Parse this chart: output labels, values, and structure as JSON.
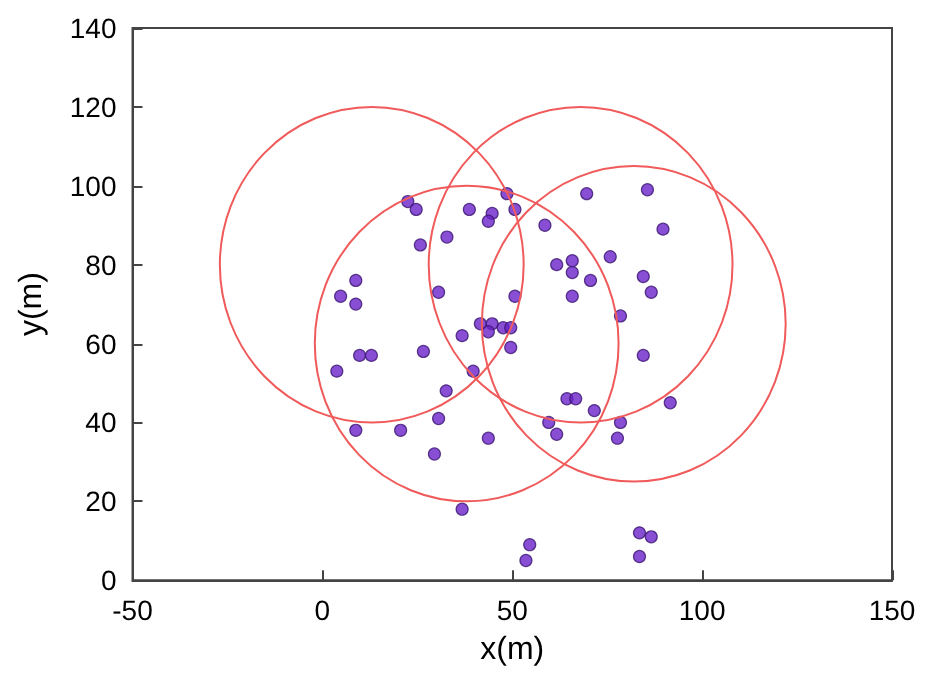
{
  "chart_data": {
    "type": "scatter",
    "xlabel": "x(m)",
    "ylabel": "y(m)",
    "xlim": [
      -50,
      150
    ],
    "ylim": [
      0,
      140
    ],
    "xticks": [
      -50,
      0,
      50,
      100,
      150
    ],
    "yticks": [
      0,
      20,
      40,
      60,
      80,
      100,
      120,
      140
    ],
    "grid": false,
    "marker": "circle",
    "series": [
      {
        "color": "#6a22c8",
        "x": [
          22.5,
          8.8,
          4.8,
          8.8,
          9.8,
          12.9,
          3.8,
          8.8,
          20.6,
          24.7,
          48.6,
          50.7,
          38.7,
          44.7,
          43.7,
          69.6,
          85.6,
          89.7,
          58.6,
          25.8,
          32.8,
          61.7,
          65.8,
          65.8,
          75.8,
          70.6,
          84.5,
          86.6,
          65.8,
          30.6,
          50.7,
          78.5,
          41.6,
          44.7,
          43.7,
          47.6,
          49.6,
          36.8,
          49.6,
          26.6,
          84.5,
          39.7,
          32.6,
          64.4,
          66.7,
          71.6,
          91.6,
          59.6,
          61.7,
          78.5,
          77.7,
          30.6,
          29.5,
          43.7,
          36.8,
          54.6,
          53.6,
          83.5,
          86.6,
          83.5
        ],
        "values": [
          96,
          76,
          72,
          70,
          57,
          57,
          53,
          38,
          38,
          94,
          98,
          94,
          94,
          93,
          91,
          98,
          99,
          89,
          90,
          85,
          87,
          80,
          81,
          78,
          82,
          76,
          77,
          73,
          72,
          73,
          72,
          67,
          65,
          65,
          63,
          64,
          64,
          62,
          59,
          58,
          57,
          53,
          48,
          46,
          46,
          43,
          45,
          40,
          37,
          40,
          36,
          41,
          32,
          36,
          18,
          9,
          5,
          12,
          11,
          6
        ]
      }
    ]
  }
}
